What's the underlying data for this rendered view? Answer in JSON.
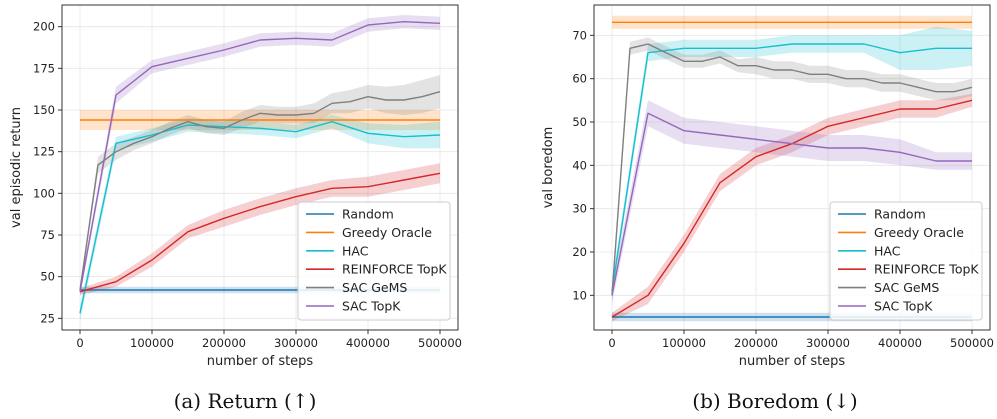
{
  "captions": [
    "(a) Return (↑)",
    "(b) Boredom (↓)"
  ],
  "colors": {
    "Random": "#1f77b4",
    "Greedy Oracle": "#ff7f0e",
    "HAC": "#17becf",
    "REINFORCE TopK": "#d62728",
    "SAC GeMS": "#7f7f7f",
    "SAC TopK": "#9467bd"
  },
  "chart_data": [
    {
      "type": "line",
      "xlabel": "number of steps",
      "ylabel": "val episodic return",
      "xlim": [
        -25000,
        525000
      ],
      "ylim": [
        18,
        213
      ],
      "xticks": [
        0,
        100000,
        200000,
        300000,
        400000,
        500000
      ],
      "yticks": [
        25,
        50,
        75,
        100,
        125,
        150,
        175,
        200
      ],
      "grid": true,
      "legend": "lower-right",
      "series": [
        {
          "name": "Random",
          "x": [
            0,
            500000
          ],
          "y": [
            42,
            42
          ],
          "band": 2
        },
        {
          "name": "Greedy Oracle",
          "x": [
            0,
            500000
          ],
          "y": [
            144,
            144
          ],
          "band": 6
        },
        {
          "name": "HAC",
          "x": [
            0,
            50000,
            100000,
            150000,
            200000,
            250000,
            300000,
            350000,
            400000,
            450000,
            500000
          ],
          "y": [
            28,
            130,
            135,
            141,
            140,
            139,
            137,
            143,
            136,
            134,
            135
          ],
          "band": [
            5,
            4,
            4,
            4,
            4,
            4,
            4,
            4,
            6,
            7,
            8
          ]
        },
        {
          "name": "REINFORCE TopK",
          "x": [
            0,
            50000,
            100000,
            150000,
            200000,
            250000,
            300000,
            350000,
            400000,
            450000,
            500000
          ],
          "y": [
            41,
            47,
            60,
            77,
            85,
            92,
            98,
            103,
            104,
            108,
            112
          ],
          "band": [
            2,
            3,
            4,
            4,
            5,
            5,
            5,
            5,
            6,
            6,
            6
          ]
        },
        {
          "name": "SAC GeMS",
          "x": [
            0,
            25000,
            50000,
            75000,
            100000,
            125000,
            150000,
            175000,
            200000,
            225000,
            250000,
            275000,
            300000,
            325000,
            350000,
            375000,
            400000,
            425000,
            450000,
            475000,
            500000
          ],
          "y": [
            42,
            117,
            125,
            130,
            134,
            139,
            143,
            140,
            139,
            144,
            148,
            147,
            147,
            148,
            154,
            155,
            158,
            156,
            156,
            158,
            161
          ],
          "band": [
            2,
            5,
            5,
            4,
            4,
            4,
            4,
            4,
            4,
            5,
            5,
            5,
            5,
            6,
            6,
            7,
            7,
            8,
            9,
            10,
            10
          ]
        },
        {
          "name": "SAC TopK",
          "x": [
            0,
            50000,
            100000,
            150000,
            200000,
            250000,
            300000,
            350000,
            400000,
            450000,
            500000
          ],
          "y": [
            41,
            159,
            176,
            181,
            186,
            192,
            193,
            192,
            201,
            203,
            202
          ],
          "band": [
            3,
            5,
            4,
            4,
            4,
            4,
            4,
            4,
            4,
            4,
            4
          ]
        }
      ]
    },
    {
      "type": "line",
      "xlabel": "number of steps",
      "ylabel": "val boredom",
      "xlim": [
        -25000,
        525000
      ],
      "ylim": [
        2,
        77
      ],
      "xticks": [
        0,
        100000,
        200000,
        300000,
        400000,
        500000
      ],
      "yticks": [
        10,
        20,
        30,
        40,
        50,
        60,
        70
      ],
      "grid": true,
      "legend": "lower-right",
      "series": [
        {
          "name": "Random",
          "x": [
            0,
            500000
          ],
          "y": [
            5,
            5
          ],
          "band": 1
        },
        {
          "name": "Greedy Oracle",
          "x": [
            0,
            500000
          ],
          "y": [
            73,
            73
          ],
          "band": 1.5
        },
        {
          "name": "HAC",
          "x": [
            0,
            50000,
            100000,
            150000,
            200000,
            250000,
            300000,
            350000,
            400000,
            450000,
            500000
          ],
          "y": [
            11,
            66,
            67,
            67,
            67,
            68,
            68,
            68,
            66,
            67,
            67
          ],
          "band": [
            2,
            2,
            2,
            2,
            2,
            2,
            2,
            2,
            4,
            5,
            4
          ]
        },
        {
          "name": "REINFORCE TopK",
          "x": [
            0,
            50000,
            100000,
            150000,
            200000,
            250000,
            300000,
            350000,
            400000,
            450000,
            500000
          ],
          "y": [
            5,
            10,
            22,
            36,
            42,
            45,
            49,
            51,
            53,
            53,
            55
          ],
          "band": [
            1,
            2,
            2,
            2,
            2,
            2,
            2,
            2,
            2,
            2,
            1.5
          ]
        },
        {
          "name": "SAC GeMS",
          "x": [
            0,
            25000,
            50000,
            75000,
            100000,
            125000,
            150000,
            175000,
            200000,
            225000,
            250000,
            275000,
            300000,
            325000,
            350000,
            375000,
            400000,
            425000,
            450000,
            475000,
            500000
          ],
          "y": [
            10,
            67,
            68,
            66,
            64,
            64,
            65,
            63,
            63,
            62,
            62,
            61,
            61,
            60,
            60,
            59,
            59,
            58,
            57,
            57,
            58
          ],
          "band": [
            2,
            1.5,
            1.5,
            1.5,
            1.5,
            1.5,
            1.5,
            1.5,
            2,
            2,
            2,
            2,
            2,
            2,
            2,
            2,
            2,
            2,
            2,
            2,
            2
          ]
        },
        {
          "name": "SAC TopK",
          "x": [
            0,
            50000,
            100000,
            150000,
            200000,
            250000,
            300000,
            350000,
            400000,
            450000,
            500000
          ],
          "y": [
            10,
            52,
            48,
            47,
            46,
            45,
            44,
            44,
            43,
            41,
            41
          ],
          "band": [
            2,
            3,
            3,
            3,
            3,
            3,
            3,
            3,
            3,
            2,
            2
          ]
        }
      ]
    }
  ]
}
